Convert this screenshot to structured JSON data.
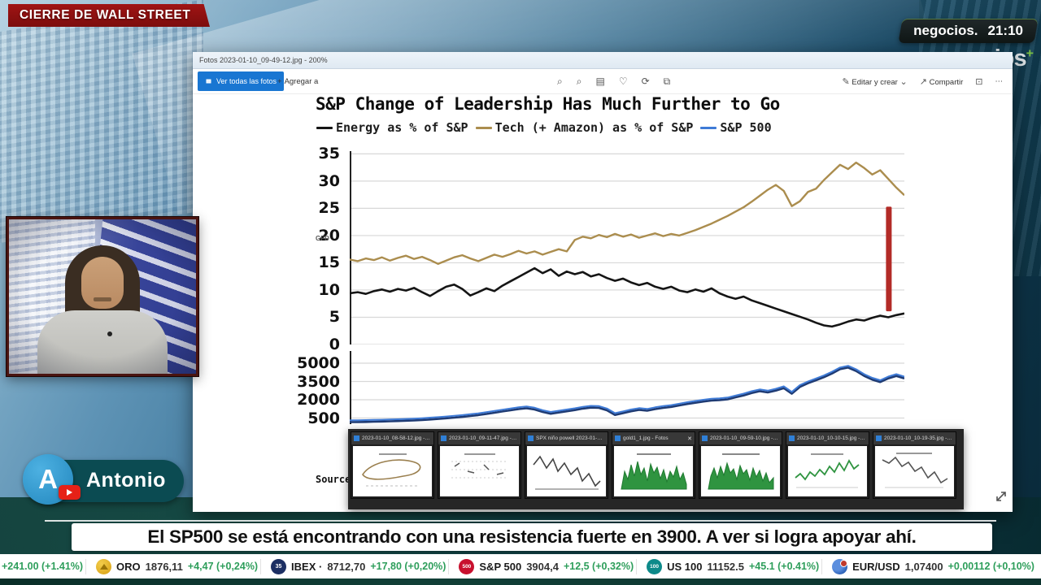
{
  "top": {
    "program_banner": "CIERRE DE WALL STREET",
    "channel": "negocios.",
    "time": "21:10",
    "watermark": "negocios",
    "watermark_suffix": "+"
  },
  "icons": {
    "add": "+",
    "chevron_down": "⌄",
    "more": "⋯",
    "zoom_in": "⌕",
    "zoom_out": "⌕",
    "slideshow": "▤",
    "favorite": "♡",
    "rotate": "⟳",
    "crop": "⧉",
    "edit": "✎",
    "share": "↗",
    "print": "⊡",
    "close": "✕"
  },
  "photos_app": {
    "titlebar_text": "Fotos    2023-01-10_09-49-12.jpg - 200%",
    "toolbar": {
      "view_all_label": "Ver todas las fotos",
      "add_label": "Agregar a",
      "edit_label": "Editar y crear",
      "share_label": "Compartir"
    }
  },
  "chart_data": {
    "type": "line",
    "title": "S&P Change of Leadership Has Much Further to Go",
    "axis_watermark": "GFD",
    "source_label": "Source:",
    "panels": [
      {
        "ylim": [
          0,
          35
        ],
        "yticks": [
          0,
          5,
          10,
          15,
          20,
          25,
          30,
          35
        ],
        "grid": true,
        "series": [
          {
            "name": "Energy as % of S&P",
            "color": "#151515",
            "values": [
              9.4,
              9.6,
              9.3,
              9.8,
              10.1,
              9.7,
              10.2,
              9.9,
              10.4,
              9.6,
              8.9,
              9.8,
              10.6,
              11.0,
              10.2,
              9.0,
              9.6,
              10.3,
              9.8,
              10.8,
              11.6,
              12.4,
              13.2,
              14.0,
              13.1,
              13.8,
              12.6,
              13.4,
              12.9,
              13.3,
              12.5,
              12.9,
              12.2,
              11.7,
              12.1,
              11.4,
              10.9,
              11.3,
              10.6,
              10.2,
              10.6,
              9.9,
              9.6,
              10.1,
              9.7,
              10.3,
              9.4,
              8.8,
              8.4,
              8.8,
              8.1,
              7.6,
              7.1,
              6.6,
              6.1,
              5.6,
              5.1,
              4.6,
              4.0,
              3.5,
              3.3,
              3.7,
              4.2,
              4.6,
              4.4,
              4.9,
              5.3,
              5.0,
              5.4,
              5.7
            ]
          },
          {
            "name": "Tech (+ Amazon) as % of S&P",
            "color": "#ab8d4e",
            "values": [
              15.6,
              15.3,
              15.8,
              15.5,
              16.0,
              15.4,
              15.9,
              16.3,
              15.7,
              16.1,
              15.5,
              14.8,
              15.4,
              16.0,
              16.4,
              15.8,
              15.3,
              15.9,
              16.5,
              16.1,
              16.6,
              17.2,
              16.7,
              17.1,
              16.5,
              17.0,
              17.5,
              17.1,
              19.2,
              19.8,
              19.5,
              20.1,
              19.7,
              20.3,
              19.8,
              20.2,
              19.6,
              20.0,
              20.4,
              19.9,
              20.3,
              20.0,
              20.5,
              21.0,
              21.6,
              22.2,
              22.9,
              23.6,
              24.4,
              25.2,
              26.2,
              27.3,
              28.4,
              29.3,
              28.2,
              25.4,
              26.3,
              28.0,
              28.6,
              30.2,
              31.6,
              33.0,
              32.2,
              33.4,
              32.4,
              31.2,
              32.0,
              30.4,
              28.8,
              27.4
            ]
          }
        ],
        "annotation_bar": {
          "color": "#b32b27",
          "from": 6.1,
          "to": 25.3,
          "x_frac": 0.972
        }
      },
      {
        "ylim": [
          0,
          6000
        ],
        "yticks": [
          500,
          2000,
          3500,
          5000
        ],
        "grid": true,
        "series": [
          {
            "name": "S&P 500",
            "color": "#3f7bd6",
            "shadow": "#1f3b73",
            "values": [
              310,
              320,
              330,
              345,
              360,
              380,
              400,
              425,
              455,
              490,
              530,
              575,
              625,
              680,
              740,
              810,
              890,
              980,
              1080,
              1190,
              1280,
              1380,
              1450,
              1350,
              1150,
              1000,
              1100,
              1200,
              1300,
              1420,
              1500,
              1480,
              1280,
              900,
              1050,
              1200,
              1310,
              1250,
              1380,
              1480,
              1560,
              1680,
              1800,
              1900,
              2000,
              2080,
              2120,
              2180,
              2350,
              2500,
              2700,
              2850,
              2750,
              2900,
              3100,
              2650,
              3200,
              3500,
              3750,
              4000,
              4300,
              4650,
              4790,
              4500,
              4100,
              3800,
              3600,
              3900,
              4100,
              3900
            ]
          }
        ]
      }
    ]
  },
  "taskbar_previews": [
    {
      "title": "2023-01-10_08-58-12.jpg - Fotos",
      "kind": "loop",
      "closable": false
    },
    {
      "title": "2023-01-10_09-11-47.jpg - Fotos",
      "kind": "dots",
      "closable": false
    },
    {
      "title": "SPX niño powell 2023-01-10_0-1...",
      "kind": "zigzag",
      "closable": false
    },
    {
      "title": "gold1_1.jpg - Fotos",
      "kind": "green-area",
      "closable": true
    },
    {
      "title": "2023-01-10_09-59-10.jpg - Fotos",
      "kind": "green-area2",
      "closable": false
    },
    {
      "title": "2023-01-10_10-10-15.jpg - Fotos",
      "kind": "green-line",
      "closable": false
    },
    {
      "title": "2023-01-10_10-19-35.jpg - Fotos",
      "kind": "decline",
      "closable": false
    }
  ],
  "webcam": {
    "name": "Antonio",
    "avatar_letter": "A"
  },
  "headline": "El SP500 se está encontrando con una resistencia fuerte en 3900. A ver si logra apoyar ahí.",
  "ticker": {
    "items": [
      {
        "icon": "",
        "icon_text": "",
        "name": "",
        "value": "",
        "change": "+241.00 (+1.41%)"
      },
      {
        "icon": "oro",
        "icon_text": "",
        "name": "ORO",
        "value": "1876,11",
        "change": "+4,47 (+0,24%)"
      },
      {
        "icon": "ibex",
        "icon_text": "35",
        "name": "IBEX ·",
        "value": "8712,70",
        "change": "+17,80 (+0,20%)"
      },
      {
        "icon": "sp",
        "icon_text": "500",
        "name": "S&P 500",
        "value": "3904,4",
        "change": "+12,5 (+0,32%)"
      },
      {
        "icon": "us100",
        "icon_text": "100",
        "name": "US 100",
        "value": "11152.5",
        "change": "+45.1 (+0.41%)"
      },
      {
        "icon": "eurusd",
        "icon_text": "",
        "name": "EUR/USD",
        "value": "1,07400",
        "change": "+0,00112 (+0,10%)"
      }
    ]
  }
}
